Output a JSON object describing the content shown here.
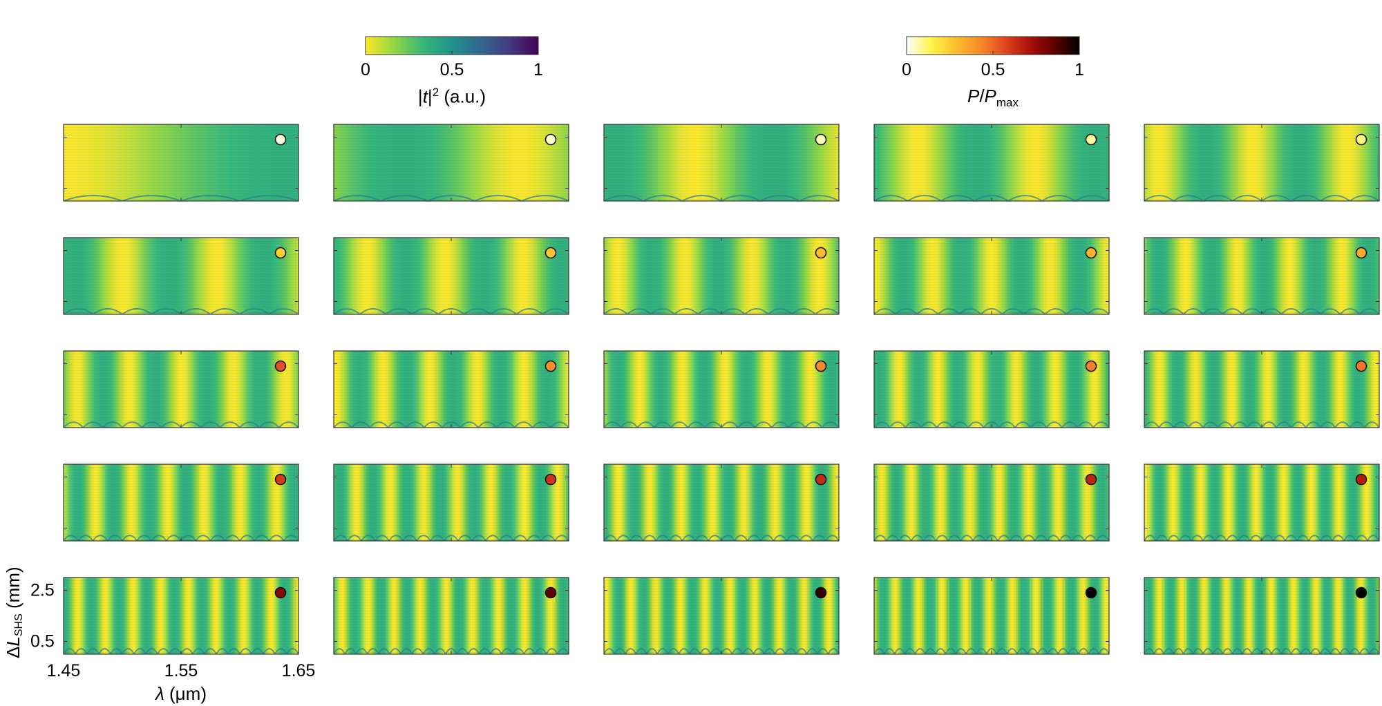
{
  "figure": {
    "colorbar_left": {
      "label_prefix": "|",
      "label_var": "t",
      "label_suffix": "|",
      "label_sup": "2",
      "label_unit": " (a.u.)",
      "ticks": [
        "0",
        "0.5",
        "1"
      ],
      "colormap": "viridis-reversed",
      "colors": [
        "#fde725",
        "#90d743",
        "#35b779",
        "#21918c",
        "#31688e",
        "#443983",
        "#440154"
      ]
    },
    "colorbar_right": {
      "label_var1": "P",
      "label_slash": "/",
      "label_var2": "P",
      "label_sub": "max",
      "ticks": [
        "0",
        "0.5",
        "1"
      ],
      "colormap": "hot-reversed",
      "colors": [
        "#ffffff",
        "#fff34a",
        "#fdbe2c",
        "#f7892a",
        "#e0451f",
        "#a80f0a",
        "#5c0000",
        "#000000"
      ]
    },
    "axes": {
      "xlabel_var": "λ",
      "xlabel_unit": " (μm)",
      "ylabel_delta": "Δ",
      "ylabel_var": "L",
      "ylabel_sub": "SHS",
      "ylabel_unit": " (mm)",
      "xticks": [
        "1.45",
        "1.55",
        "1.65"
      ],
      "yticks": [
        "2.5",
        "0.5"
      ]
    }
  },
  "chart_data": {
    "type": "heatmap",
    "layout": "grid",
    "rows": 5,
    "cols": 5,
    "x_range": [
      1.45,
      1.65
    ],
    "y_range": [
      0,
      3
    ],
    "x_ticks": [
      1.45,
      1.55,
      1.65
    ],
    "y_ticks": [
      2.5,
      0.5
    ],
    "color_range": [
      0,
      1
    ],
    "panels_fringe_count": [
      [
        1,
        2,
        3,
        4,
        5
      ],
      [
        5,
        6,
        7,
        8,
        9
      ],
      [
        9,
        10,
        11,
        12,
        13
      ],
      [
        13,
        14,
        15,
        16,
        17
      ],
      [
        17,
        18,
        19,
        20,
        21
      ]
    ],
    "marker_power_normalized": [
      [
        0.02,
        0.04,
        0.06,
        0.08,
        0.1
      ],
      [
        0.24,
        0.27,
        0.3,
        0.32,
        0.34
      ],
      [
        0.55,
        0.41,
        0.43,
        0.45,
        0.47
      ],
      [
        0.6,
        0.62,
        0.64,
        0.66,
        0.68
      ],
      [
        0.78,
        0.84,
        0.92,
        0.98,
        1.0
      ]
    ]
  }
}
